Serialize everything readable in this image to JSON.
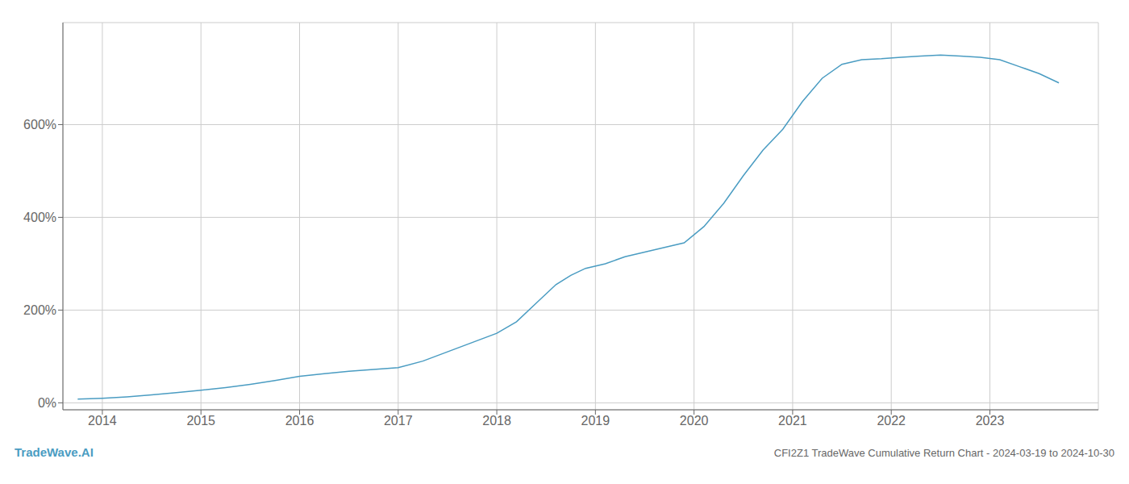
{
  "chart_data": {
    "type": "line",
    "title": "CFI2Z1 TradeWave Cumulative Return Chart - 2024-03-19 to 2024-10-30",
    "annotations": [
      "TradeWave.AI"
    ],
    "x": [
      2013.75,
      2014.0,
      2014.25,
      2014.5,
      2014.75,
      2015.0,
      2015.25,
      2015.5,
      2015.75,
      2016.0,
      2016.25,
      2016.5,
      2016.75,
      2017.0,
      2017.25,
      2017.5,
      2017.75,
      2018.0,
      2018.2,
      2018.4,
      2018.6,
      2018.75,
      2018.9,
      2019.1,
      2019.3,
      2019.5,
      2019.7,
      2019.9,
      2020.1,
      2020.3,
      2020.5,
      2020.7,
      2020.9,
      2021.1,
      2021.3,
      2021.5,
      2021.7,
      2021.9,
      2022.1,
      2022.3,
      2022.5,
      2022.7,
      2022.9,
      2023.1,
      2023.3,
      2023.5,
      2023.7
    ],
    "values": [
      8,
      10,
      13,
      17,
      22,
      27,
      33,
      40,
      48,
      57,
      63,
      68,
      72,
      76,
      90,
      110,
      130,
      150,
      175,
      215,
      255,
      275,
      290,
      300,
      315,
      325,
      335,
      345,
      380,
      430,
      490,
      545,
      590,
      650,
      700,
      730,
      740,
      742,
      745,
      748,
      750,
      748,
      745,
      740,
      725,
      710,
      690
    ],
    "color": "#4a9cc2",
    "xlim": [
      2013.6,
      2024.1
    ],
    "ylim": [
      -15,
      820
    ],
    "xticks": [
      2014,
      2015,
      2016,
      2017,
      2018,
      2019,
      2020,
      2021,
      2022,
      2023
    ],
    "yticks": [
      {
        "value": 0,
        "label": "0%"
      },
      {
        "value": 200,
        "label": "200%"
      },
      {
        "value": 400,
        "label": "400%"
      },
      {
        "value": 600,
        "label": "600%"
      }
    ],
    "grid": true
  }
}
